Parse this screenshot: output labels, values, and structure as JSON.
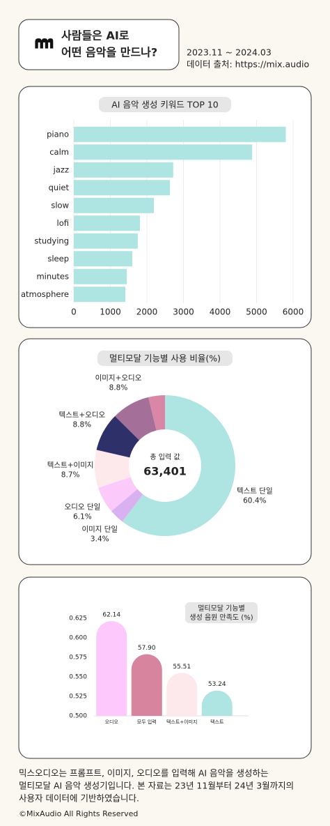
{
  "header": {
    "title": [
      "사람들은 AI로",
      "어떤 음악을 만드나?"
    ],
    "period": "2023.11 ~ 2024.03",
    "source": "데이터 출처: https://mix.audio"
  },
  "chart_data": [
    {
      "type": "bar",
      "horizontal": true,
      "title": "AI 음악 생성 키워드 TOP 10",
      "categories": [
        "piano",
        "calm",
        "jazz",
        "quiet",
        "slow",
        "lofi",
        "studying",
        "sleep",
        "minutes",
        "atmosphere"
      ],
      "values": [
        5800,
        4880,
        2720,
        2630,
        2190,
        1810,
        1750,
        1600,
        1450,
        1410
      ],
      "color": "#aee4e1",
      "xlim": [
        0,
        6000
      ],
      "xticks": [
        0,
        1000,
        2000,
        3000,
        4000,
        5000,
        6000
      ],
      "grid": true
    },
    {
      "type": "pie",
      "title": "멀티모달 기능별 사용 비율(%)",
      "center_title": "총 입력 값",
      "center_text": "63,401",
      "categories": [
        "텍스트 단일",
        "이미지 단일",
        "오디오 단일",
        "텍스트+이미지",
        "텍스트+오디오",
        "이미지+오디오",
        null
      ],
      "values": [
        60.4,
        3.4,
        6.1,
        8.7,
        8.8,
        8.8,
        3.8
      ],
      "value_labels": [
        "60.4%",
        "3.4%",
        "6.1%",
        "8.7%",
        "8.8%",
        "8.8%",
        null
      ],
      "colors": [
        "#aee4e1",
        "#d9b1f1",
        "#fcc9fb",
        "#fde8ec",
        "#2e3169",
        "#a4709a",
        "#d987a6"
      ]
    },
    {
      "type": "bar",
      "title": [
        "멀티모달 기능별",
        "생성 음원 만족도 (%)"
      ],
      "categories": [
        "오디오",
        "모두 입력",
        "텍스트+이미지",
        "텍스트"
      ],
      "values": [
        0.6214,
        0.579,
        0.5551,
        0.5324
      ],
      "value_labels": [
        "62.14",
        "57.90",
        "55.51",
        "53.24"
      ],
      "colors": [
        "#fdc9fc",
        "#d7849f",
        "#fde8ec",
        "#aee4e1"
      ],
      "ylim": [
        0.5,
        0.625
      ],
      "yticks": [
        0.625,
        {
          "value": 0.6,
          "label": "0.600"
        },
        0.575,
        {
          "value": 0.55,
          "label": "0.550"
        },
        0.525,
        {
          "value": 0.5,
          "label": "0.500"
        }
      ],
      "grid": false
    }
  ],
  "footer": {
    "description": [
      "믹스오디오는 프롬프트, 이미지, 오디오를 입력해 AI 음악을 생성하는",
      "멀티모달 AI 음악 생성기입니다. 본 자료는 23년 11월부터 24년 3월까지의",
      "사용자 데이터에 기반하였습니다."
    ],
    "copyright": "©MixAudio All Rights Reserved"
  }
}
